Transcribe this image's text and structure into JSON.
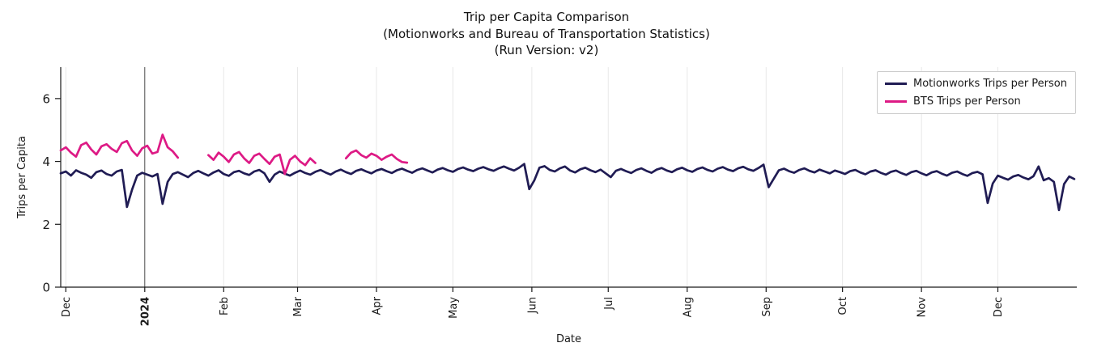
{
  "title": {
    "line1": "Trip per Capita Comparison",
    "line2": "(Motionworks and Bureau of Transportation Statistics)",
    "line3": "(Run Version: v2)"
  },
  "axes_labels": {
    "x": "Date",
    "y": "Trips per Capita"
  },
  "colors": {
    "motionworks": "#201c54",
    "bts": "#dd1a85",
    "grid": "#e8e8e8",
    "year_line": "#4a4a4a",
    "spine": "#1a1a1a",
    "text": "#1a1a1a",
    "legend_border": "#cccccc",
    "background": "#ffffff"
  },
  "chart_data": {
    "type": "line",
    "title": "Trip per Capita Comparison (Motionworks and Bureau of Transportation Statistics) (Run Version: v2)",
    "xlabel": "Date",
    "ylabel": "Trips per Capita",
    "ylim": [
      0,
      7
    ],
    "y_ticks": [
      0,
      2,
      4,
      6
    ],
    "grid": "vertical-monthly",
    "legend_position": "upper right",
    "x_axis": {
      "unit": "day index (0 = 2023-11-29)",
      "domain_days": 399,
      "ticks": [
        {
          "label": "Dec",
          "day": 2
        },
        {
          "label": "2024",
          "day": 33,
          "bold": true,
          "year_line": true
        },
        {
          "label": "Feb",
          "day": 64
        },
        {
          "label": "Mar",
          "day": 93
        },
        {
          "label": "Apr",
          "day": 124
        },
        {
          "label": "May",
          "day": 154
        },
        {
          "label": "Jun",
          "day": 185
        },
        {
          "label": "Jul",
          "day": 215
        },
        {
          "label": "Aug",
          "day": 246
        },
        {
          "label": "Sep",
          "day": 277
        },
        {
          "label": "Oct",
          "day": 307
        },
        {
          "label": "Nov",
          "day": 338
        },
        {
          "label": "Dec",
          "day": 368
        }
      ]
    },
    "series": [
      {
        "name": "Motionworks Trips per Person",
        "color": "#201c54",
        "line_width": 2.7,
        "segments": [
          [
            [
              0,
              3.62
            ],
            [
              2,
              3.68
            ],
            [
              4,
              3.55
            ],
            [
              6,
              3.72
            ],
            [
              8,
              3.64
            ],
            [
              10,
              3.58
            ],
            [
              12,
              3.48
            ],
            [
              14,
              3.66
            ],
            [
              16,
              3.71
            ],
            [
              18,
              3.6
            ],
            [
              20,
              3.55
            ],
            [
              22,
              3.68
            ],
            [
              24,
              3.73
            ],
            [
              26,
              2.55
            ],
            [
              28,
              3.1
            ],
            [
              30,
              3.55
            ],
            [
              32,
              3.64
            ],
            [
              34,
              3.58
            ],
            [
              36,
              3.52
            ],
            [
              38,
              3.6
            ],
            [
              40,
              2.65
            ],
            [
              42,
              3.35
            ],
            [
              44,
              3.6
            ],
            [
              46,
              3.66
            ],
            [
              48,
              3.58
            ],
            [
              50,
              3.5
            ],
            [
              52,
              3.63
            ],
            [
              54,
              3.7
            ],
            [
              56,
              3.62
            ],
            [
              58,
              3.55
            ],
            [
              60,
              3.65
            ],
            [
              62,
              3.72
            ],
            [
              64,
              3.6
            ],
            [
              66,
              3.54
            ],
            [
              68,
              3.66
            ],
            [
              70,
              3.7
            ],
            [
              72,
              3.62
            ],
            [
              74,
              3.57
            ],
            [
              76,
              3.68
            ],
            [
              78,
              3.73
            ],
            [
              80,
              3.62
            ],
            [
              82,
              3.35
            ],
            [
              84,
              3.58
            ],
            [
              86,
              3.68
            ],
            [
              88,
              3.61
            ],
            [
              90,
              3.55
            ],
            [
              92,
              3.64
            ],
            [
              94,
              3.71
            ],
            [
              96,
              3.63
            ],
            [
              98,
              3.58
            ],
            [
              100,
              3.67
            ],
            [
              102,
              3.73
            ],
            [
              104,
              3.65
            ],
            [
              106,
              3.58
            ],
            [
              108,
              3.68
            ],
            [
              110,
              3.74
            ],
            [
              112,
              3.66
            ],
            [
              114,
              3.6
            ],
            [
              116,
              3.7
            ],
            [
              118,
              3.75
            ],
            [
              120,
              3.68
            ],
            [
              122,
              3.62
            ],
            [
              124,
              3.71
            ],
            [
              126,
              3.76
            ],
            [
              128,
              3.69
            ],
            [
              130,
              3.63
            ],
            [
              132,
              3.72
            ],
            [
              134,
              3.77
            ],
            [
              136,
              3.7
            ],
            [
              138,
              3.64
            ],
            [
              140,
              3.73
            ],
            [
              142,
              3.78
            ],
            [
              144,
              3.71
            ],
            [
              146,
              3.65
            ],
            [
              148,
              3.74
            ],
            [
              150,
              3.79
            ],
            [
              152,
              3.72
            ],
            [
              154,
              3.67
            ],
            [
              156,
              3.76
            ],
            [
              158,
              3.81
            ],
            [
              160,
              3.74
            ],
            [
              162,
              3.69
            ],
            [
              164,
              3.77
            ],
            [
              166,
              3.82
            ],
            [
              168,
              3.75
            ],
            [
              170,
              3.7
            ],
            [
              172,
              3.78
            ],
            [
              174,
              3.84
            ],
            [
              176,
              3.77
            ],
            [
              178,
              3.71
            ],
            [
              180,
              3.8
            ],
            [
              182,
              3.92
            ],
            [
              184,
              3.12
            ],
            [
              186,
              3.4
            ],
            [
              188,
              3.8
            ],
            [
              190,
              3.85
            ],
            [
              192,
              3.73
            ],
            [
              194,
              3.68
            ],
            [
              196,
              3.78
            ],
            [
              198,
              3.84
            ],
            [
              200,
              3.71
            ],
            [
              202,
              3.65
            ],
            [
              204,
              3.75
            ],
            [
              206,
              3.8
            ],
            [
              208,
              3.72
            ],
            [
              210,
              3.66
            ],
            [
              212,
              3.74
            ],
            [
              214,
              3.62
            ],
            [
              216,
              3.5
            ],
            [
              218,
              3.7
            ],
            [
              220,
              3.76
            ],
            [
              222,
              3.69
            ],
            [
              224,
              3.63
            ],
            [
              226,
              3.73
            ],
            [
              228,
              3.78
            ],
            [
              230,
              3.7
            ],
            [
              232,
              3.64
            ],
            [
              234,
              3.74
            ],
            [
              236,
              3.79
            ],
            [
              238,
              3.71
            ],
            [
              240,
              3.66
            ],
            [
              242,
              3.75
            ],
            [
              244,
              3.8
            ],
            [
              246,
              3.72
            ],
            [
              248,
              3.67
            ],
            [
              250,
              3.76
            ],
            [
              252,
              3.81
            ],
            [
              254,
              3.73
            ],
            [
              256,
              3.68
            ],
            [
              258,
              3.77
            ],
            [
              260,
              3.82
            ],
            [
              262,
              3.74
            ],
            [
              264,
              3.69
            ],
            [
              266,
              3.78
            ],
            [
              268,
              3.83
            ],
            [
              270,
              3.75
            ],
            [
              272,
              3.7
            ],
            [
              274,
              3.79
            ],
            [
              276,
              3.9
            ],
            [
              278,
              3.18
            ],
            [
              280,
              3.45
            ],
            [
              282,
              3.72
            ],
            [
              284,
              3.77
            ],
            [
              286,
              3.69
            ],
            [
              288,
              3.64
            ],
            [
              290,
              3.73
            ],
            [
              292,
              3.78
            ],
            [
              294,
              3.7
            ],
            [
              296,
              3.65
            ],
            [
              298,
              3.74
            ],
            [
              300,
              3.68
            ],
            [
              302,
              3.62
            ],
            [
              304,
              3.71
            ],
            [
              306,
              3.66
            ],
            [
              308,
              3.6
            ],
            [
              310,
              3.69
            ],
            [
              312,
              3.73
            ],
            [
              314,
              3.65
            ],
            [
              316,
              3.59
            ],
            [
              318,
              3.68
            ],
            [
              320,
              3.72
            ],
            [
              322,
              3.64
            ],
            [
              324,
              3.58
            ],
            [
              326,
              3.67
            ],
            [
              328,
              3.71
            ],
            [
              330,
              3.63
            ],
            [
              332,
              3.57
            ],
            [
              334,
              3.66
            ],
            [
              336,
              3.7
            ],
            [
              338,
              3.62
            ],
            [
              340,
              3.56
            ],
            [
              342,
              3.65
            ],
            [
              344,
              3.69
            ],
            [
              346,
              3.61
            ],
            [
              348,
              3.55
            ],
            [
              350,
              3.64
            ],
            [
              352,
              3.68
            ],
            [
              354,
              3.6
            ],
            [
              356,
              3.54
            ],
            [
              358,
              3.63
            ],
            [
              360,
              3.67
            ],
            [
              362,
              3.59
            ],
            [
              364,
              2.68
            ],
            [
              366,
              3.3
            ],
            [
              368,
              3.55
            ],
            [
              370,
              3.48
            ],
            [
              372,
              3.42
            ],
            [
              374,
              3.52
            ],
            [
              376,
              3.57
            ],
            [
              378,
              3.49
            ],
            [
              380,
              3.43
            ],
            [
              382,
              3.53
            ],
            [
              384,
              3.84
            ],
            [
              386,
              3.4
            ],
            [
              388,
              3.47
            ],
            [
              390,
              3.35
            ],
            [
              392,
              2.45
            ],
            [
              394,
              3.28
            ],
            [
              396,
              3.52
            ],
            [
              398,
              3.44
            ]
          ]
        ]
      },
      {
        "name": "BTS Trips per Person",
        "color": "#dd1a85",
        "line_width": 2.7,
        "segments": [
          [
            [
              0,
              4.35
            ],
            [
              2,
              4.45
            ],
            [
              4,
              4.28
            ],
            [
              6,
              4.15
            ],
            [
              8,
              4.52
            ],
            [
              10,
              4.6
            ],
            [
              12,
              4.38
            ],
            [
              14,
              4.22
            ],
            [
              16,
              4.48
            ],
            [
              18,
              4.55
            ],
            [
              20,
              4.4
            ],
            [
              22,
              4.3
            ],
            [
              24,
              4.58
            ],
            [
              26,
              4.65
            ],
            [
              28,
              4.35
            ],
            [
              30,
              4.18
            ],
            [
              32,
              4.42
            ],
            [
              34,
              4.5
            ],
            [
              36,
              4.25
            ],
            [
              38,
              4.3
            ],
            [
              40,
              4.85
            ],
            [
              42,
              4.45
            ],
            [
              44,
              4.32
            ],
            [
              46,
              4.12
            ]
          ],
          [
            [
              58,
              4.2
            ],
            [
              60,
              4.05
            ],
            [
              62,
              4.28
            ],
            [
              64,
              4.15
            ],
            [
              66,
              3.98
            ],
            [
              68,
              4.22
            ],
            [
              70,
              4.3
            ],
            [
              72,
              4.1
            ],
            [
              74,
              3.95
            ],
            [
              76,
              4.18
            ],
            [
              78,
              4.25
            ],
            [
              80,
              4.08
            ],
            [
              82,
              3.92
            ],
            [
              84,
              4.15
            ],
            [
              86,
              4.22
            ],
            [
              88,
              3.6
            ],
            [
              90,
              4.05
            ],
            [
              92,
              4.18
            ],
            [
              94,
              4.0
            ],
            [
              96,
              3.88
            ],
            [
              98,
              4.1
            ],
            [
              100,
              3.95
            ]
          ],
          [
            [
              112,
              4.1
            ],
            [
              114,
              4.28
            ],
            [
              116,
              4.35
            ],
            [
              118,
              4.2
            ],
            [
              120,
              4.12
            ],
            [
              122,
              4.25
            ],
            [
              124,
              4.18
            ],
            [
              126,
              4.05
            ],
            [
              128,
              4.15
            ],
            [
              130,
              4.22
            ],
            [
              132,
              4.08
            ],
            [
              134,
              3.98
            ],
            [
              136,
              3.96
            ]
          ]
        ]
      }
    ]
  }
}
